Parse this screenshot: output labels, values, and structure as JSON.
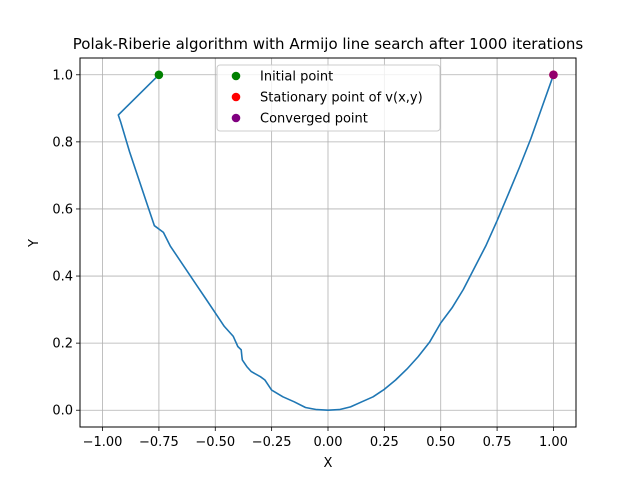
{
  "chart_data": {
    "type": "line",
    "title": "Polak-Riberie algorithm with Armijo line search after 1000 iterations",
    "xlabel": "X",
    "ylabel": "Y",
    "xlim": [
      -1.1,
      1.1
    ],
    "ylim": [
      -0.05,
      1.05
    ],
    "grid": true,
    "legend_position": "top-center",
    "xticks": [
      -1.0,
      -0.75,
      -0.5,
      -0.25,
      0.0,
      0.25,
      0.5,
      0.75,
      1.0
    ],
    "xtick_labels": [
      "−1.00",
      "−0.75",
      "−0.50",
      "−0.25",
      "0.00",
      "0.25",
      "0.50",
      "0.75",
      "1.00"
    ],
    "yticks": [
      0.0,
      0.2,
      0.4,
      0.6,
      0.8,
      1.0
    ],
    "ytick_labels": [
      "0.0",
      "0.2",
      "0.4",
      "0.6",
      "0.8",
      "1.0"
    ],
    "line_color": "#1f77b4",
    "path": {
      "x": [
        -0.75,
        -0.93,
        -0.92,
        -0.88,
        -0.84,
        -0.8,
        -0.77,
        -0.73,
        -0.7,
        -0.66,
        -0.62,
        -0.58,
        -0.54,
        -0.5,
        -0.46,
        -0.42,
        -0.4,
        -0.385,
        -0.382,
        -0.38,
        -0.36,
        -0.34,
        -0.3,
        -0.28,
        -0.25,
        -0.2,
        -0.15,
        -0.1,
        -0.05,
        0.0,
        0.05,
        0.1,
        0.15,
        0.2,
        0.25,
        0.3,
        0.35,
        0.4,
        0.45,
        0.5,
        0.55,
        0.6,
        0.65,
        0.7,
        0.75,
        0.8,
        0.85,
        0.9,
        0.95,
        1.0
      ],
      "y": [
        1.0,
        0.88,
        0.86,
        0.77,
        0.69,
        0.61,
        0.55,
        0.53,
        0.49,
        0.45,
        0.41,
        0.37,
        0.33,
        0.29,
        0.25,
        0.22,
        0.19,
        0.18,
        0.16,
        0.15,
        0.13,
        0.115,
        0.1,
        0.09,
        0.06,
        0.04,
        0.025,
        0.008,
        0.002,
        0.0,
        0.002,
        0.01,
        0.025,
        0.04,
        0.0625,
        0.09,
        0.1225,
        0.16,
        0.2025,
        0.26,
        0.305,
        0.36,
        0.425,
        0.49,
        0.565,
        0.645,
        0.725,
        0.81,
        0.905,
        1.0
      ]
    },
    "points": [
      {
        "name": "Initial point",
        "x": -0.75,
        "y": 1.0,
        "color": "#008000"
      },
      {
        "name": "Stationary point of v(x,y)",
        "x": 1.0,
        "y": 1.0,
        "color": "#ff0000"
      },
      {
        "name": "Converged point",
        "x": 1.0,
        "y": 1.0,
        "color": "#800080"
      }
    ],
    "legend": [
      {
        "label": "Initial point",
        "color": "#008000"
      },
      {
        "label": "Stationary point of v(x,y)",
        "color": "#ff0000"
      },
      {
        "label": "Converged point",
        "color": "#800080"
      }
    ]
  }
}
